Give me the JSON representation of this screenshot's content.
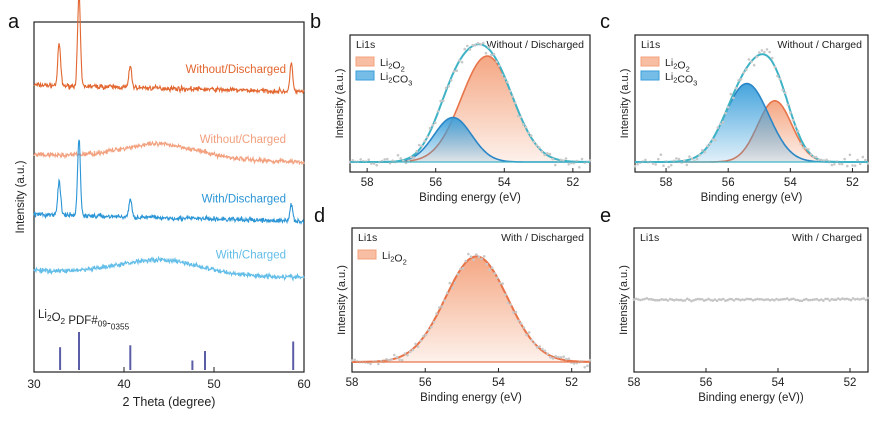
{
  "figure": {
    "panel_labels": [
      "a",
      "b",
      "c",
      "d",
      "e"
    ]
  },
  "chart_data": [
    {
      "panel": "a",
      "type": "line",
      "title": "",
      "xlabel": "2 Theta (degree)",
      "ylabel": "Intensity (a.u.)",
      "xlim": [
        30,
        60
      ],
      "xticks": [
        30,
        40,
        50,
        60
      ],
      "y_ticks_shown": false,
      "grid": false,
      "series": [
        {
          "name": "Without/Discharged",
          "color": "#e2662f",
          "baseline_level": 0.82,
          "peaks": [
            [
              32.8,
              0.12
            ],
            [
              35.0,
              0.26
            ],
            [
              40.7,
              0.06
            ],
            [
              58.6,
              0.08
            ]
          ],
          "hump": 0.0
        },
        {
          "name": "Without/Charged",
          "color": "#f2a07e",
          "baseline_level": 0.62,
          "peaks": [],
          "hump": 0.04
        },
        {
          "name": "With/Discharged",
          "color": "#2b95d6",
          "baseline_level": 0.45,
          "peaks": [
            [
              32.8,
              0.1
            ],
            [
              35.0,
              0.22
            ],
            [
              40.7,
              0.05
            ],
            [
              58.6,
              0.05
            ]
          ],
          "hump": 0.0
        },
        {
          "name": "With/Charged",
          "color": "#62bde8",
          "baseline_level": 0.29,
          "peaks": [],
          "hump": 0.04
        }
      ],
      "reference": {
        "label": "Li2O2 PDF#09-0355",
        "color": "#5b5ea6",
        "positions": [
          32.9,
          35.0,
          40.7,
          47.6,
          49.0,
          58.8
        ],
        "relative_heights": [
          0.6,
          1.0,
          0.65,
          0.25,
          0.5,
          0.75
        ]
      }
    },
    {
      "panel": "b",
      "type": "line",
      "element": "Li1s",
      "condition": "Without / Discharged",
      "xlabel": "Binding energy (eV)",
      "ylabel": "Intensity (a.u.)",
      "xlim": [
        58.5,
        51.5
      ],
      "xticks": [
        58,
        56,
        54,
        52
      ],
      "legend": [
        {
          "label": "Li2O2",
          "color": "#f4a27c"
        },
        {
          "label": "Li2CO3",
          "color": "#3b9fdb"
        }
      ],
      "components": [
        {
          "name": "Li2O2",
          "center": 54.5,
          "height": 1.0,
          "sigma": 0.75,
          "color": "#f4a27c",
          "line": "#e8744a"
        },
        {
          "name": "Li2CO3",
          "center": 55.5,
          "height": 0.42,
          "sigma": 0.55,
          "color": "#3b9fdb",
          "line": "#2a86c6"
        }
      ],
      "envelope_color": "#3fb3c6",
      "ylim": [
        0,
        1.18
      ]
    },
    {
      "panel": "c",
      "type": "line",
      "element": "Li1s",
      "condition": "Without / Charged",
      "xlabel": "Binding energy (eV)",
      "ylabel": "Intensity (a.u.)",
      "xlim": [
        59,
        51.5
      ],
      "xticks": [
        58,
        56,
        54,
        52
      ],
      "legend": [
        {
          "label": "Li2O2",
          "color": "#f4a27c"
        },
        {
          "label": "Li2CO3",
          "color": "#3b9fdb"
        }
      ],
      "components": [
        {
          "name": "Li2O2",
          "center": 54.5,
          "height": 0.5,
          "sigma": 0.55,
          "color": "#f4a27c",
          "line": "#e8744a"
        },
        {
          "name": "Li2CO3",
          "center": 55.4,
          "height": 0.64,
          "sigma": 0.7,
          "color": "#3b9fdb",
          "line": "#2a86c6"
        }
      ],
      "envelope_color": "#3fb3c6",
      "ylim": [
        0,
        1.02
      ]
    },
    {
      "panel": "d",
      "type": "line",
      "element": "Li1s",
      "condition": "With / Discharged",
      "xlabel": "Binding energy (eV)",
      "ylabel": "Intensity (a.u.)",
      "xlim": [
        58,
        51.5
      ],
      "xticks": [
        58,
        56,
        54,
        52
      ],
      "legend": [
        {
          "label": "Li2O2",
          "color": "#f4a27c"
        }
      ],
      "components": [
        {
          "name": "Li2O2",
          "center": 54.6,
          "height": 1.0,
          "sigma": 0.85,
          "color": "#f4a27c",
          "line": "#e8744a"
        }
      ],
      "envelope_color": "#e8744a",
      "ylim": [
        0,
        1.25
      ]
    },
    {
      "panel": "e",
      "type": "line",
      "element": "Li1s",
      "condition": "With / Charged",
      "xlabel": "Binding energy (eV))",
      "ylabel": "Intensity (a.u.)",
      "xlim": [
        58,
        51.5
      ],
      "xticks": [
        58,
        56,
        54,
        52
      ],
      "legend": [],
      "components": [],
      "flat_level": 0.5,
      "ylim": [
        0,
        1.0
      ]
    }
  ]
}
